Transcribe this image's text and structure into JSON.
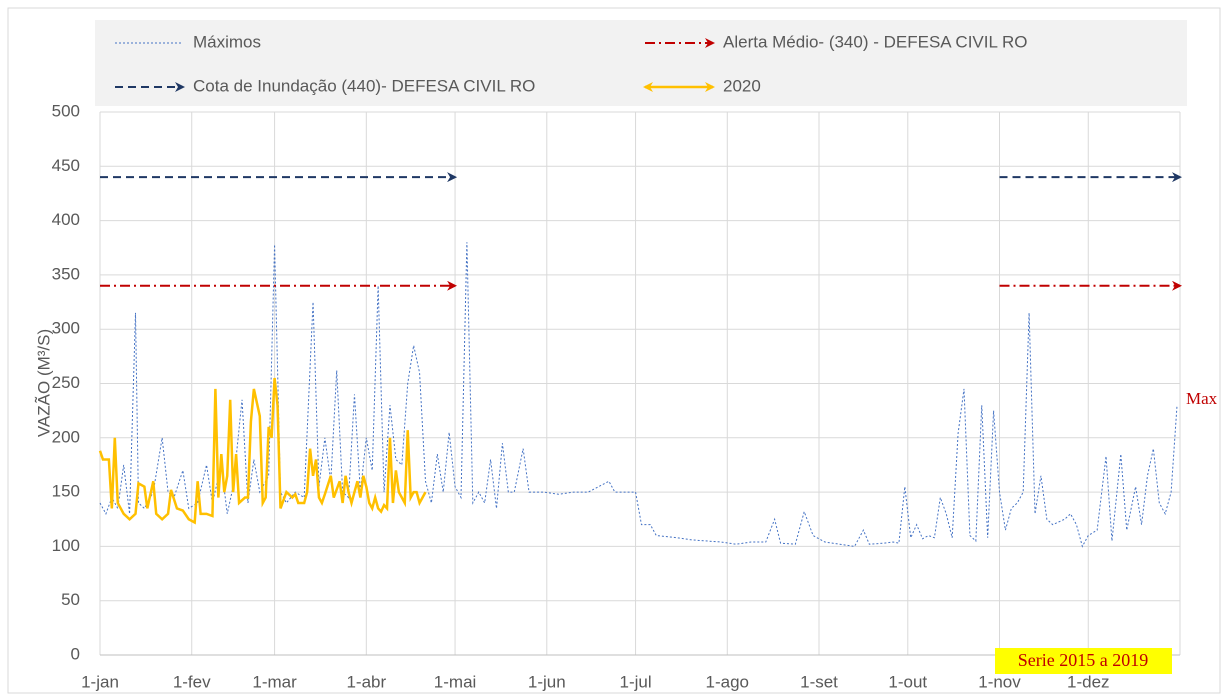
{
  "chart_data": {
    "type": "line",
    "y_label": "VAZÃO (M³/S)",
    "xlim": [
      0,
      365
    ],
    "ylim": [
      0,
      500
    ],
    "grid": true,
    "yticks": [
      0,
      50,
      100,
      150,
      200,
      250,
      300,
      350,
      400,
      450,
      500
    ],
    "xticks": [
      {
        "value": 0,
        "label": "1-jan"
      },
      {
        "value": 31,
        "label": "1-fev"
      },
      {
        "value": 59,
        "label": "1-mar"
      },
      {
        "value": 90,
        "label": "1-abr"
      },
      {
        "value": 120,
        "label": "1-mai"
      },
      {
        "value": 151,
        "label": "1-jun"
      },
      {
        "value": 181,
        "label": "1-jul"
      },
      {
        "value": 212,
        "label": "1-ago"
      },
      {
        "value": 243,
        "label": "1-set"
      },
      {
        "value": 273,
        "label": "1-out"
      },
      {
        "value": 304,
        "label": "1-nov"
      },
      {
        "value": 334,
        "label": "1-dez"
      },
      {
        "value": 365,
        "label": ""
      }
    ],
    "annotations": [
      "Max",
      "Serie 2015 a 2019"
    ],
    "series": [
      {
        "name": "Máximos",
        "color": "#4472c4",
        "style": "dotted",
        "x": [
          0,
          2,
          4,
          6,
          8,
          10,
          12,
          13,
          15,
          18,
          21,
          23,
          25,
          28,
          30,
          33,
          36,
          38,
          41,
          43,
          45,
          48,
          50,
          52,
          54,
          57,
          59,
          61,
          63,
          66,
          69,
          72,
          74,
          76,
          78,
          80,
          82,
          84,
          86,
          88,
          90,
          92,
          94,
          96,
          98,
          100,
          102,
          104,
          106,
          108,
          110,
          112,
          114,
          116,
          118,
          120,
          122,
          124,
          126,
          128,
          130,
          132,
          134,
          136,
          138,
          140,
          143,
          145,
          150,
          155,
          160,
          165,
          172,
          174,
          181,
          183,
          186,
          188,
          195,
          200,
          210,
          215,
          220,
          225,
          228,
          230,
          235,
          238,
          241,
          245,
          250,
          255,
          258,
          260,
          265,
          268,
          270,
          272,
          274,
          276,
          278,
          280,
          282,
          284,
          286,
          288,
          290,
          292,
          294,
          296,
          298,
          300,
          302,
          304,
          306,
          308,
          310,
          312,
          314,
          316,
          318,
          320,
          322,
          326,
          328,
          330,
          332,
          334,
          337,
          340,
          342,
          345,
          347,
          350,
          352,
          354,
          356,
          358,
          360,
          362,
          364
        ],
        "values": [
          140,
          130,
          145,
          135,
          175,
          130,
          315,
          140,
          135,
          150,
          200,
          150,
          145,
          170,
          135,
          140,
          175,
          140,
          175,
          130,
          155,
          235,
          140,
          180,
          150,
          165,
          378,
          150,
          140,
          150,
          145,
          325,
          155,
          200,
          160,
          262,
          150,
          145,
          240,
          150,
          200,
          170,
          340,
          150,
          230,
          180,
          175,
          250,
          285,
          260,
          160,
          140,
          185,
          150,
          205,
          155,
          145,
          380,
          140,
          150,
          140,
          180,
          135,
          195,
          150,
          150,
          190,
          150,
          150,
          148,
          150,
          150,
          160,
          150,
          150,
          120,
          120,
          110,
          108,
          106,
          104,
          102,
          104,
          104,
          125,
          103,
          102,
          132,
          110,
          104,
          102,
          100,
          115,
          102,
          103,
          104,
          103,
          155,
          108,
          120,
          107,
          110,
          108,
          145,
          130,
          108,
          204,
          245,
          110,
          105,
          230,
          108,
          225,
          150,
          115,
          135,
          140,
          150,
          315,
          130,
          165,
          125,
          120,
          125,
          130,
          120,
          100,
          110,
          115,
          183,
          105,
          185,
          115,
          155,
          120,
          165,
          190,
          140,
          130,
          150,
          230
        ]
      },
      {
        "name": "Alerta Médio-  (340) - DEFESA CIVIL RO",
        "color": "#c00000",
        "style": "dashdot",
        "end_arrow": true,
        "x": [
          0,
          120,
          null,
          304,
          365
        ],
        "values": [
          340,
          340,
          null,
          340,
          340
        ]
      },
      {
        "name": "Cota de Inundação  (440)- DEFESA CIVIL RO",
        "color": "#1f3864",
        "style": "dashed",
        "end_arrow": true,
        "x": [
          0,
          120,
          null,
          304,
          365
        ],
        "values": [
          440,
          440,
          null,
          440,
          440
        ]
      },
      {
        "name": "2020",
        "color": "#ffc000",
        "style": "solid",
        "x": [
          0,
          1,
          3,
          4,
          5,
          6,
          8,
          10,
          12,
          13,
          15,
          16,
          18,
          19,
          21,
          23,
          24,
          26,
          28,
          30,
          32,
          33,
          34,
          36,
          38,
          39,
          40,
          41,
          42,
          43,
          44,
          45,
          46,
          47,
          49,
          50,
          51,
          52,
          54,
          55,
          56,
          57,
          58,
          59,
          60,
          61,
          63,
          65,
          66,
          67,
          69,
          70,
          71,
          72,
          73,
          74,
          75,
          76,
          78,
          79,
          81,
          82,
          83,
          84,
          85,
          86,
          87,
          88,
          89,
          90,
          91,
          92,
          93,
          94,
          95,
          96,
          97,
          98,
          99,
          100,
          101,
          102,
          103,
          104,
          105,
          106,
          107,
          108,
          110
        ],
        "values": [
          188,
          180,
          180,
          135,
          200,
          140,
          130,
          125,
          130,
          158,
          155,
          135,
          160,
          130,
          125,
          130,
          152,
          135,
          133,
          125,
          122,
          160,
          130,
          130,
          128,
          245,
          145,
          185,
          150,
          165,
          235,
          150,
          185,
          140,
          145,
          145,
          215,
          245,
          220,
          140,
          145,
          210,
          200,
          255,
          230,
          135,
          150,
          145,
          148,
          140,
          140,
          150,
          190,
          165,
          180,
          145,
          140,
          148,
          165,
          145,
          160,
          140,
          165,
          150,
          140,
          150,
          160,
          145,
          165,
          155,
          140,
          135,
          145,
          135,
          132,
          138,
          135,
          200,
          140,
          170,
          150,
          145,
          140,
          207,
          145,
          150,
          150,
          140,
          150
        ]
      }
    ]
  }
}
